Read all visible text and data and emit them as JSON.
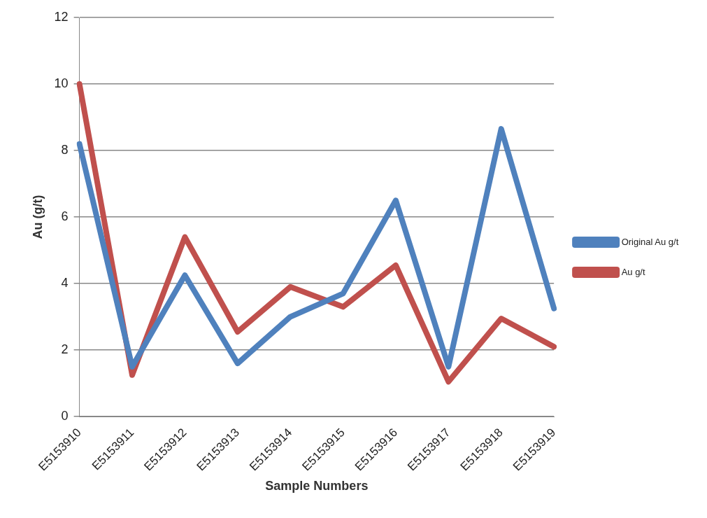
{
  "chart_data": {
    "type": "line",
    "xlabel": "Sample Numbers",
    "ylabel": "Au (g/t)",
    "categories": [
      "E5153910",
      "E5153911",
      "E5153912",
      "E5153913",
      "E5153914",
      "E5153915",
      "E5153916",
      "E5153917",
      "E5153918",
      "E5153919"
    ],
    "series": [
      {
        "name": "Original Au g/t",
        "color": "#4f81bd",
        "values": [
          8.2,
          1.5,
          4.25,
          1.6,
          3.0,
          3.7,
          6.5,
          1.5,
          8.65,
          3.25
        ]
      },
      {
        "name": "Au g/t",
        "color": "#c0504d",
        "values": [
          10,
          1.25,
          5.4,
          2.55,
          3.9,
          3.3,
          4.55,
          1.05,
          2.95,
          2.1
        ]
      }
    ],
    "ylim": [
      0,
      12
    ],
    "yticks": [
      0,
      2,
      4,
      6,
      8,
      10,
      12
    ],
    "grid": "y",
    "legend": "right",
    "marker": "none",
    "line_style": "solid"
  }
}
